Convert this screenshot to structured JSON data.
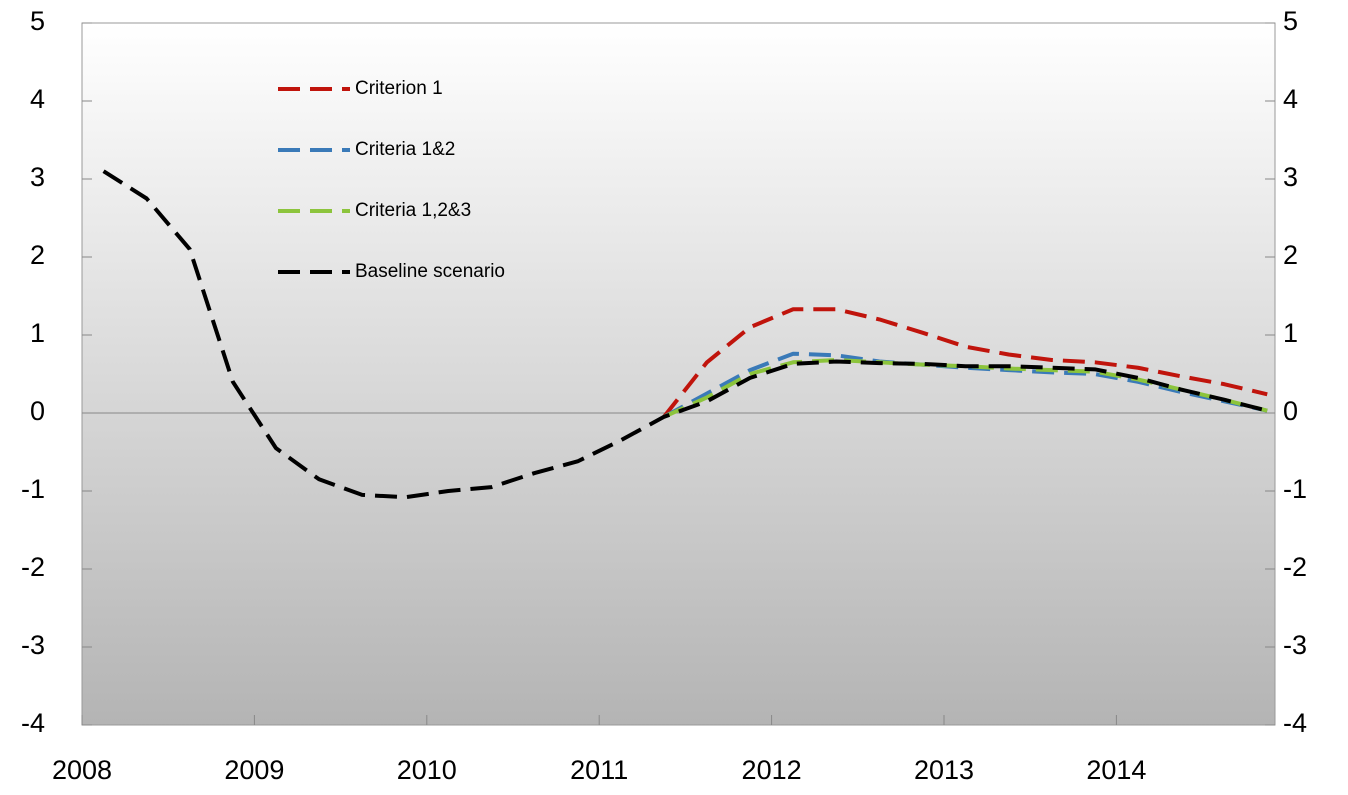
{
  "chart_data": {
    "type": "line",
    "x": [
      2008.125,
      2008.375,
      2008.625,
      2008.875,
      2009.125,
      2009.375,
      2009.625,
      2009.875,
      2010.125,
      2010.375,
      2010.625,
      2010.875,
      2011.125,
      2011.375,
      2011.625,
      2011.875,
      2012.125,
      2012.375,
      2012.625,
      2012.875,
      2013.125,
      2013.375,
      2013.625,
      2013.875,
      2014.125,
      2014.375,
      2014.625,
      2014.875
    ],
    "series": [
      {
        "name": "Criterion 1",
        "color": "#c0140c",
        "values": [
          null,
          null,
          null,
          null,
          null,
          null,
          null,
          null,
          null,
          null,
          null,
          null,
          null,
          -0.05,
          0.65,
          1.1,
          1.33,
          1.33,
          1.2,
          1.03,
          0.85,
          0.75,
          0.68,
          0.65,
          0.58,
          0.47,
          0.37,
          0.24
        ]
      },
      {
        "name": "Criteria 1&2",
        "color": "#3a7ab8",
        "values": [
          null,
          null,
          null,
          null,
          null,
          null,
          null,
          null,
          null,
          null,
          null,
          null,
          null,
          -0.05,
          0.25,
          0.55,
          0.76,
          0.74,
          0.66,
          0.62,
          0.58,
          0.55,
          0.52,
          0.5,
          0.4,
          0.27,
          0.15,
          0.03
        ]
      },
      {
        "name": "Criteria 1,2&3",
        "color": "#8cc43c",
        "values": [
          null,
          null,
          null,
          null,
          null,
          null,
          null,
          null,
          null,
          null,
          null,
          null,
          null,
          -0.05,
          0.2,
          0.5,
          0.65,
          0.68,
          0.65,
          0.62,
          0.6,
          0.57,
          0.55,
          0.53,
          0.43,
          0.3,
          0.17,
          0.03
        ]
      },
      {
        "name": "Baseline scenario",
        "color": "#000000",
        "values": [
          3.1,
          2.75,
          2.1,
          0.4,
          -0.45,
          -0.85,
          -1.05,
          -1.08,
          -1.0,
          -0.95,
          -0.77,
          -0.62,
          -0.35,
          -0.05,
          0.15,
          0.45,
          0.63,
          0.66,
          0.64,
          0.63,
          0.6,
          0.6,
          0.58,
          0.56,
          0.45,
          0.3,
          0.17,
          0.03
        ]
      }
    ],
    "xlim": [
      2008,
      2014.92
    ],
    "xticks": [
      2008,
      2009,
      2010,
      2011,
      2012,
      2013,
      2014
    ],
    "ylim": [
      -4,
      5
    ],
    "yticks": [
      -4,
      -3,
      -2,
      -1,
      0,
      1,
      2,
      3,
      4,
      5
    ],
    "y2lim": [
      -4,
      5
    ],
    "y2ticks": [
      -4,
      -3,
      -2,
      -1,
      0,
      1,
      2,
      3,
      4,
      5
    ],
    "legend": "upper-left",
    "dashed": true
  }
}
